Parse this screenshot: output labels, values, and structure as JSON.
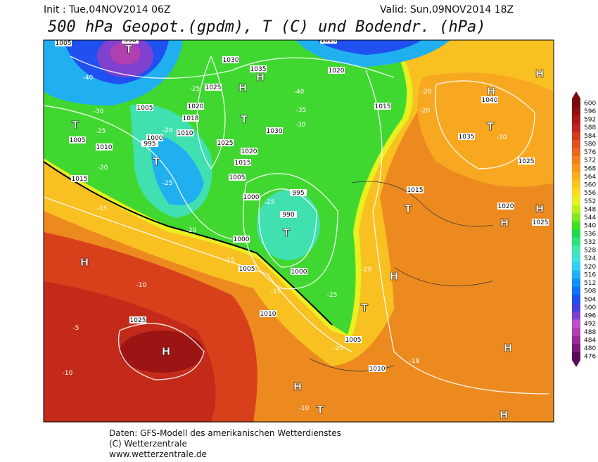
{
  "header": {
    "init": "Init : Tue,04NOV2014 06Z",
    "valid": "Valid: Sun,09NOV2014 18Z",
    "title": "500 hPa Geopot.(gpdm), T (C) und Bodendr. (hPa)"
  },
  "colorbar": {
    "levels": [
      476,
      480,
      484,
      488,
      492,
      496,
      500,
      504,
      508,
      512,
      516,
      520,
      524,
      528,
      532,
      536,
      540,
      544,
      548,
      552,
      556,
      560,
      564,
      568,
      572,
      576,
      580,
      584,
      588,
      592,
      596,
      600
    ],
    "colors": [
      "#5a0a5a",
      "#7a1a7a",
      "#9a2a9a",
      "#b040b0",
      "#c050c8",
      "#8040d0",
      "#4040e0",
      "#2050f0",
      "#1070f8",
      "#1090f8",
      "#20b0f8",
      "#30d0f0",
      "#40e0d8",
      "#40e8b0",
      "#30e080",
      "#20d850",
      "#40e020",
      "#80e820",
      "#b8f020",
      "#e8f020",
      "#f8e020",
      "#f8c820",
      "#f8b020",
      "#f89820",
      "#f08020",
      "#e86820",
      "#e05020",
      "#d03820",
      "#c02020",
      "#a81818",
      "#901010",
      "#780c0c"
    ]
  },
  "map": {
    "labels": [
      "T",
      "H",
      "T",
      "T",
      "T",
      "H",
      "H",
      "H",
      "H",
      "T",
      "H",
      "T",
      "H",
      "H",
      "H",
      "T",
      "T",
      "H",
      "H",
      "T",
      "H",
      "1005",
      "990",
      "1030",
      "1035",
      "1025",
      "1020",
      "1005",
      "1018",
      "1010",
      "1000",
      "995",
      "1005",
      "1010",
      "1015",
      "1025",
      "1020",
      "1015",
      "1005",
      "1000",
      "995",
      "990",
      "1000",
      "1005",
      "1000",
      "1010",
      "1025",
      "1005",
      "1010",
      "1015",
      "1030",
      "1035",
      "1040",
      "1025",
      "1020",
      "1025",
      "1015",
      "1020",
      "1015",
      "-40",
      "-30",
      "-25",
      "-20",
      "-35",
      "-40",
      "-30",
      "-25",
      "-20",
      "-15",
      "-25",
      "-20",
      "-15",
      "-10",
      "-5",
      "-10",
      "-25",
      "-20",
      "-15",
      "-20",
      "-25",
      "-30",
      "-20",
      "-18",
      "-10",
      "-20"
    ]
  },
  "footer": {
    "line1": "Daten: GFS-Modell des amerikanischen Wetterdienstes",
    "line2": "(C) Wetterzentrale",
    "line3": "www.wetterzentrale.de"
  }
}
